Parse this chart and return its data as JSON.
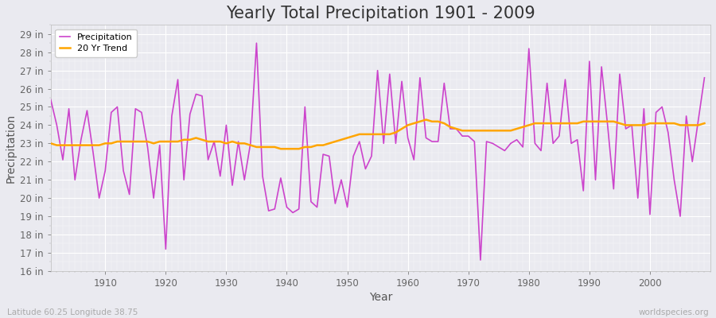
{
  "title": "Yearly Total Precipitation 1901 - 2009",
  "xlabel": "Year",
  "ylabel": "Precipitation",
  "lat_lon_label": "Latitude 60.25 Longitude 38.75",
  "watermark": "worldspecies.org",
  "years": [
    1901,
    1902,
    1903,
    1904,
    1905,
    1906,
    1907,
    1908,
    1909,
    1910,
    1911,
    1912,
    1913,
    1914,
    1915,
    1916,
    1917,
    1918,
    1919,
    1920,
    1921,
    1922,
    1923,
    1924,
    1925,
    1926,
    1927,
    1928,
    1929,
    1930,
    1931,
    1932,
    1933,
    1934,
    1935,
    1936,
    1937,
    1938,
    1939,
    1940,
    1941,
    1942,
    1943,
    1944,
    1945,
    1946,
    1947,
    1948,
    1949,
    1950,
    1951,
    1952,
    1953,
    1954,
    1955,
    1956,
    1957,
    1958,
    1959,
    1960,
    1961,
    1962,
    1963,
    1964,
    1965,
    1966,
    1967,
    1968,
    1969,
    1970,
    1971,
    1972,
    1973,
    1974,
    1975,
    1976,
    1977,
    1978,
    1979,
    1980,
    1981,
    1982,
    1983,
    1984,
    1985,
    1986,
    1987,
    1988,
    1989,
    1990,
    1991,
    1992,
    1993,
    1994,
    1995,
    1996,
    1997,
    1998,
    1999,
    2000,
    2001,
    2002,
    2003,
    2004,
    2005,
    2006,
    2007,
    2008,
    2009
  ],
  "precip_in": [
    25.4,
    24.0,
    22.1,
    24.9,
    21.0,
    23.2,
    24.8,
    22.5,
    20.0,
    21.5,
    24.7,
    25.0,
    21.5,
    20.2,
    24.9,
    24.7,
    22.8,
    20.0,
    22.9,
    17.2,
    24.5,
    26.5,
    21.0,
    24.6,
    25.7,
    25.6,
    22.1,
    23.1,
    21.2,
    24.0,
    20.7,
    23.1,
    21.0,
    23.0,
    28.5,
    21.2,
    19.3,
    19.4,
    21.1,
    19.5,
    19.2,
    19.4,
    25.0,
    19.8,
    19.5,
    22.4,
    22.3,
    19.7,
    21.0,
    19.5,
    22.3,
    23.1,
    21.6,
    22.3,
    27.0,
    23.0,
    26.8,
    23.0,
    26.4,
    23.3,
    22.1,
    26.6,
    23.3,
    23.1,
    23.1,
    26.3,
    23.8,
    23.8,
    23.4,
    23.4,
    23.1,
    16.6,
    23.1,
    23.0,
    22.8,
    22.6,
    23.0,
    23.2,
    22.8,
    28.2,
    23.0,
    22.6,
    26.3,
    23.0,
    23.4,
    26.5,
    23.0,
    23.2,
    20.4,
    27.5,
    21.0,
    27.2,
    24.0,
    20.5,
    26.8,
    23.8,
    24.0,
    20.0,
    24.9,
    19.1,
    24.7,
    25.0,
    23.6,
    21.0,
    19.0,
    24.5,
    22.0,
    24.3,
    26.6
  ],
  "trend_in": [
    23.0,
    22.9,
    22.9,
    22.9,
    22.9,
    22.9,
    22.9,
    22.9,
    22.9,
    23.0,
    23.0,
    23.1,
    23.1,
    23.1,
    23.1,
    23.1,
    23.1,
    23.0,
    23.1,
    23.1,
    23.1,
    23.1,
    23.2,
    23.2,
    23.3,
    23.2,
    23.1,
    23.1,
    23.1,
    23.0,
    23.1,
    23.0,
    23.0,
    22.9,
    22.8,
    22.8,
    22.8,
    22.8,
    22.7,
    22.7,
    22.7,
    22.7,
    22.8,
    22.8,
    22.9,
    22.9,
    23.0,
    23.1,
    23.2,
    23.3,
    23.4,
    23.5,
    23.5,
    23.5,
    23.5,
    23.5,
    23.5,
    23.6,
    23.8,
    24.0,
    24.1,
    24.2,
    24.3,
    24.2,
    24.2,
    24.1,
    23.9,
    23.8,
    23.7,
    23.7,
    23.7,
    23.7,
    23.7,
    23.7,
    23.7,
    23.7,
    23.7,
    23.8,
    23.9,
    24.0,
    24.1,
    24.1,
    24.1,
    24.1,
    24.1,
    24.1,
    24.1,
    24.1,
    24.2,
    24.2,
    24.2,
    24.2,
    24.2,
    24.2,
    24.1,
    24.0,
    24.0,
    24.0,
    24.0,
    24.1,
    24.1,
    24.1,
    24.1,
    24.1,
    24.0,
    24.0,
    24.0,
    24.0,
    24.1
  ],
  "precip_color": "#CC44CC",
  "trend_color": "#FFA500",
  "bg_color": "#EAEAF0",
  "plot_bg_color": "#EAEAF0",
  "title_fontsize": 15,
  "axis_label_fontsize": 10,
  "tick_fontsize": 8.5,
  "ylim": [
    16,
    29.5
  ],
  "ytick_values": [
    16,
    17,
    18,
    19,
    20,
    21,
    22,
    23,
    24,
    25,
    26,
    27,
    28,
    29
  ],
  "xlim": [
    1901,
    2010
  ],
  "xtick_values": [
    1910,
    1920,
    1930,
    1940,
    1950,
    1960,
    1970,
    1980,
    1990,
    2000
  ]
}
